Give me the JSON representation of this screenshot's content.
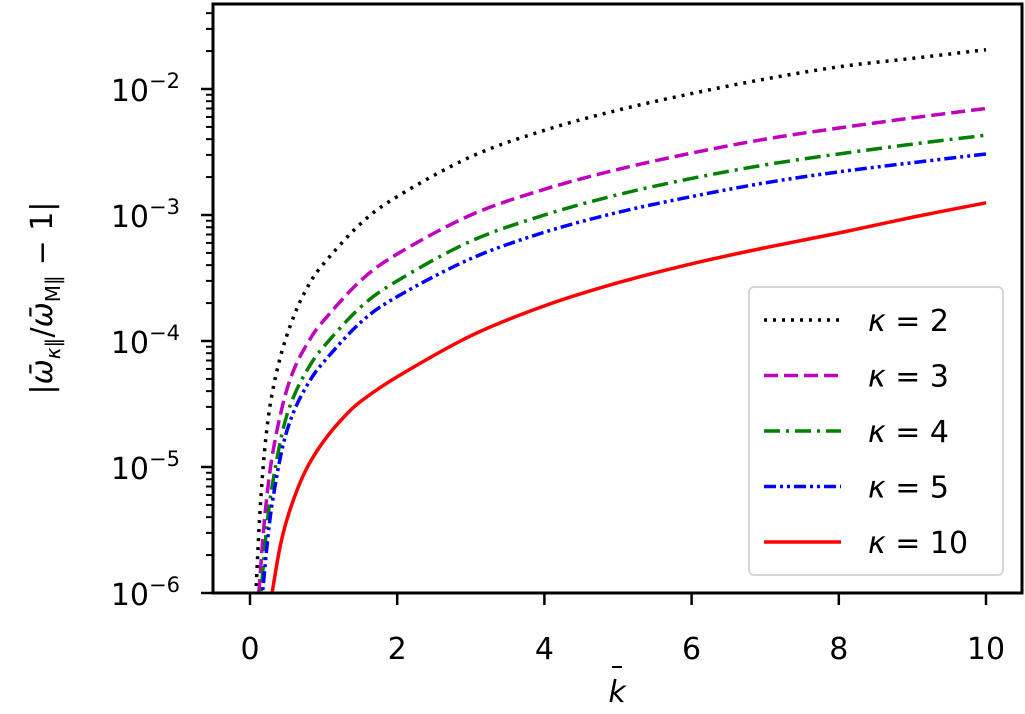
{
  "chart_data": {
    "type": "line",
    "title": "",
    "xlabel": "k̄",
    "ylabel": "|ω̄κ∥/ω̄M∥ − 1|",
    "xlim": [
      -0.5,
      10.5
    ],
    "ylim": [
      1e-06,
      0.047
    ],
    "yscale": "log",
    "grid": false,
    "legend_position": "lower right",
    "x_ticks": [
      0,
      2,
      4,
      6,
      8,
      10
    ],
    "x_tick_labels": [
      "0",
      "2",
      "4",
      "6",
      "8",
      "10"
    ],
    "y_ticks": [
      1e-06,
      1e-05,
      0.0001,
      0.001,
      0.01
    ],
    "y_tick_labels": [
      {
        "base": "10",
        "exp": "−6"
      },
      {
        "base": "10",
        "exp": "−5"
      },
      {
        "base": "10",
        "exp": "−4"
      },
      {
        "base": "10",
        "exp": "−3"
      },
      {
        "base": "10",
        "exp": "−2"
      }
    ],
    "x": [
      0.1,
      0.2,
      0.3,
      0.5,
      0.75,
      1,
      1.5,
      2,
      3,
      4,
      5,
      6,
      7,
      8,
      9,
      10
    ],
    "series": [
      {
        "name": "κ = 2",
        "label_kappa": "κ",
        "label_value": "2",
        "color": "#000000",
        "dash": "3,6",
        "cap": "butt",
        "x": [
          0.08,
          0.15,
          0.25,
          0.4,
          0.6,
          0.8,
          1.0,
          1.5,
          2,
          3,
          4,
          5,
          6,
          7,
          8,
          9,
          10
        ],
        "values": [
          1e-06,
          6e-06,
          2.5e-05,
          7e-05,
          0.00016,
          0.00028,
          0.00041,
          0.00085,
          0.0014,
          0.0029,
          0.0047,
          0.0068,
          0.0092,
          0.012,
          0.015,
          0.0175,
          0.0205
        ]
      },
      {
        "name": "κ = 3",
        "label_kappa": "κ",
        "label_value": "3",
        "color": "#bf00bf",
        "dash": "14,6",
        "cap": "butt",
        "x": [
          0.12,
          0.2,
          0.3,
          0.45,
          0.6,
          0.8,
          1.0,
          1.5,
          2,
          3,
          4,
          5,
          6,
          7,
          8,
          9,
          10
        ],
        "values": [
          1e-06,
          4e-06,
          1.2e-05,
          3.2e-05,
          6e-05,
          0.0001,
          0.000145,
          0.0003,
          0.00049,
          0.001,
          0.0016,
          0.0023,
          0.0031,
          0.004,
          0.0049,
          0.0059,
          0.007
        ]
      },
      {
        "name": "κ = 4",
        "label_kappa": "κ",
        "label_value": "4",
        "color": "#008000",
        "dash": "16,6,3,6",
        "cap": "butt",
        "x": [
          0.15,
          0.22,
          0.3,
          0.45,
          0.6,
          0.8,
          1.0,
          1.5,
          2,
          3,
          4,
          5,
          6,
          7,
          8,
          9,
          10
        ],
        "values": [
          1e-06,
          3e-06,
          7e-06,
          2e-05,
          3.7e-05,
          6.2e-05,
          9e-05,
          0.000185,
          0.0003,
          0.00062,
          0.001,
          0.00145,
          0.00195,
          0.0025,
          0.00305,
          0.00365,
          0.0043
        ]
      },
      {
        "name": "κ = 5",
        "label_kappa": "κ",
        "label_value": "5",
        "color": "#0000ff",
        "dash": "12,4,3,4,3,4",
        "cap": "butt",
        "x": [
          0.17,
          0.25,
          0.32,
          0.45,
          0.6,
          0.8,
          1.0,
          1.5,
          2,
          3,
          4,
          5,
          6,
          7,
          8,
          9,
          10
        ],
        "values": [
          1e-06,
          3e-06,
          6e-06,
          1.5e-05,
          2.8e-05,
          4.7e-05,
          6.8e-05,
          0.00014,
          0.000225,
          0.00045,
          0.00073,
          0.00105,
          0.0014,
          0.0018,
          0.0022,
          0.0026,
          0.00305
        ]
      },
      {
        "name": "κ = 10",
        "label_kappa": "κ",
        "label_value": "10",
        "color": "#ff0000",
        "dash": "",
        "cap": "butt",
        "x": [
          0.3,
          0.4,
          0.5,
          0.65,
          0.8,
          1.0,
          1.25,
          1.5,
          2,
          3,
          4,
          5,
          6,
          7,
          8,
          9,
          10
        ],
        "values": [
          1e-06,
          2.2e-06,
          3.8e-06,
          6.8e-06,
          1.05e-05,
          1.6e-05,
          2.4e-05,
          3.3e-05,
          5.2e-05,
          0.00011,
          0.00019,
          0.00029,
          0.00041,
          0.00055,
          0.00072,
          0.00096,
          0.00125
        ]
      }
    ]
  }
}
